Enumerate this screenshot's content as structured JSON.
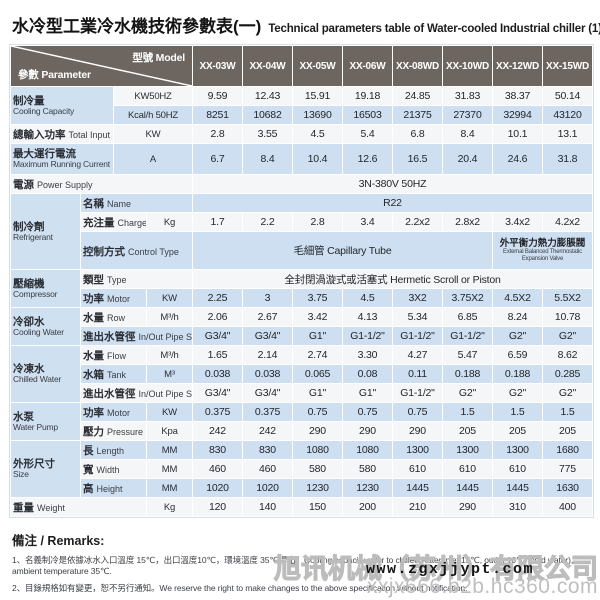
{
  "title": {
    "zh": "水冷型工業冷水機技術參數表(一)",
    "en": "Technical parameters table of Water-cooled Industrial chiller (1)"
  },
  "colors": {
    "header_bg": "#6d6660",
    "row_blue": "#cddff1",
    "row_white": "#f4f6f8",
    "grid_line": "#ffffff"
  },
  "table": {
    "corner": {
      "top": "型號 Model",
      "bottom": "參數 Parameter"
    },
    "models": [
      "XX-03W",
      "XX-04W",
      "XX-05W",
      "XX-06W",
      "XX-08WD",
      "XX-10WD",
      "XX-12WD",
      "XX-15WD"
    ],
    "rows": [
      {
        "h": 19,
        "shade": "w",
        "cells": [
          {
            "k": "label2",
            "c": 2,
            "r": 2,
            "zh": "制冷量",
            "en": "Cooling Capacity"
          },
          {
            "k": "unit",
            "c": 2,
            "t": "KW50HZ"
          },
          {
            "k": "val",
            "t": "9.59"
          },
          {
            "k": "val",
            "t": "12.43"
          },
          {
            "k": "val",
            "t": "15.91"
          },
          {
            "k": "val",
            "t": "19.18"
          },
          {
            "k": "val",
            "t": "24.85"
          },
          {
            "k": "val",
            "t": "31.83"
          },
          {
            "k": "val",
            "t": "38.37"
          },
          {
            "k": "val",
            "t": "50.14"
          }
        ]
      },
      {
        "h": 19,
        "shade": "b",
        "cells": [
          {
            "k": "unit",
            "c": 2,
            "t": "Kcal/h 50HZ"
          },
          {
            "k": "val",
            "t": "8251"
          },
          {
            "k": "val",
            "t": "10682"
          },
          {
            "k": "val",
            "t": "13690"
          },
          {
            "k": "val",
            "t": "16503"
          },
          {
            "k": "val",
            "t": "21375"
          },
          {
            "k": "val",
            "t": "27370"
          },
          {
            "k": "val",
            "t": "32994"
          },
          {
            "k": "val",
            "t": "43120"
          }
        ]
      },
      {
        "h": 19,
        "shade": "w",
        "cells": [
          {
            "k": "label1",
            "c": 2,
            "zh": "總輸入功率",
            "en": "Total Input"
          },
          {
            "k": "unit",
            "c": 2,
            "t": "KW"
          },
          {
            "k": "val",
            "t": "2.8"
          },
          {
            "k": "val",
            "t": "3.55"
          },
          {
            "k": "val",
            "t": "4.5"
          },
          {
            "k": "val",
            "t": "5.4"
          },
          {
            "k": "val",
            "t": "6.8"
          },
          {
            "k": "val",
            "t": "8.4"
          },
          {
            "k": "val",
            "t": "10.1"
          },
          {
            "k": "val",
            "t": "13.1"
          }
        ]
      },
      {
        "h": 31,
        "shade": "b",
        "cells": [
          {
            "k": "label2",
            "c": 2,
            "zh": "最大運行電流",
            "en": "Maximum Running Current"
          },
          {
            "k": "unit",
            "c": 2,
            "t": "A"
          },
          {
            "k": "val",
            "t": "6.7"
          },
          {
            "k": "val",
            "t": "8.4"
          },
          {
            "k": "val",
            "t": "10.4"
          },
          {
            "k": "val",
            "t": "12.6"
          },
          {
            "k": "val",
            "t": "16.5"
          },
          {
            "k": "val",
            "t": "20.4"
          },
          {
            "k": "val",
            "t": "24.6"
          },
          {
            "k": "val",
            "t": "31.8"
          }
        ]
      },
      {
        "h": 19,
        "shade": "w",
        "cells": [
          {
            "k": "label1",
            "c": 4,
            "zh": "電源",
            "en": "Power Supply"
          },
          {
            "k": "valspan",
            "c": 8,
            "t": "3N-380V  50HZ"
          }
        ]
      },
      {
        "h": 18,
        "shade": "b",
        "cells": [
          {
            "k": "group",
            "c": 1,
            "r": 3,
            "zh": "制冷劑",
            "en": "Refrigerant"
          },
          {
            "k": "sublabel",
            "c": 3,
            "zh": "名稱",
            "en": "Name"
          },
          {
            "k": "valspan",
            "c": 8,
            "t": "R22"
          }
        ]
      },
      {
        "h": 19,
        "shade": "w",
        "cells": [
          {
            "k": "sublabel",
            "c": 2,
            "zh": "充注量",
            "en": "Charge"
          },
          {
            "k": "unit",
            "c": 1,
            "t": "Kg"
          },
          {
            "k": "val",
            "t": "1.7"
          },
          {
            "k": "val",
            "t": "2.2"
          },
          {
            "k": "val",
            "t": "2.8"
          },
          {
            "k": "val",
            "t": "3.4"
          },
          {
            "k": "val",
            "t": "2.2x2"
          },
          {
            "k": "val",
            "t": "2.8x2"
          },
          {
            "k": "val",
            "t": "3.4x2"
          },
          {
            "k": "val",
            "t": "4.2x2"
          }
        ]
      },
      {
        "h": 38,
        "shade": "b",
        "cells": [
          {
            "k": "sublabel",
            "c": 3,
            "zh": "控制方式",
            "en": "Control Type"
          },
          {
            "k": "valspan",
            "c": 6,
            "t": "毛細管 Capillary Tube"
          },
          {
            "k": "valspan2",
            "c": 2,
            "zh": "外平衡力熱力膨脹閥",
            "en": "External Balanced Thermostatic Expansion Valve"
          }
        ]
      },
      {
        "h": 19,
        "shade": "w",
        "cells": [
          {
            "k": "group",
            "c": 1,
            "r": 2,
            "zh": "壓縮機",
            "en": "Compressor"
          },
          {
            "k": "sublabel",
            "c": 3,
            "zh": "類型",
            "en": "Type"
          },
          {
            "k": "valspan",
            "c": 8,
            "t": "全封閉渦漩式或活塞式 Hermetic Scroll or Piston"
          }
        ]
      },
      {
        "h": 19,
        "shade": "b",
        "cells": [
          {
            "k": "sublabel",
            "c": 2,
            "zh": "功率",
            "en": "Motor"
          },
          {
            "k": "unit",
            "c": 1,
            "t": "KW"
          },
          {
            "k": "val",
            "t": "2.25"
          },
          {
            "k": "val",
            "t": "3"
          },
          {
            "k": "val",
            "t": "3.75"
          },
          {
            "k": "val",
            "t": "4.5"
          },
          {
            "k": "val",
            "t": "3X2"
          },
          {
            "k": "val",
            "t": "3.75X2"
          },
          {
            "k": "val",
            "t": "4.5X2"
          },
          {
            "k": "val",
            "t": "5.5X2"
          }
        ]
      },
      {
        "h": 18,
        "shade": "w",
        "cells": [
          {
            "k": "group",
            "c": 1,
            "r": 2,
            "zh": "冷卻水",
            "en": "Cooling Water"
          },
          {
            "k": "sublabel",
            "c": 2,
            "zh": "水量",
            "en": "Row"
          },
          {
            "k": "unit",
            "c": 1,
            "t": "M³/h"
          },
          {
            "k": "val",
            "t": "2.06"
          },
          {
            "k": "val",
            "t": "2.67"
          },
          {
            "k": "val",
            "t": "3.42"
          },
          {
            "k": "val",
            "t": "4.13"
          },
          {
            "k": "val",
            "t": "5.34"
          },
          {
            "k": "val",
            "t": "6.85"
          },
          {
            "k": "val",
            "t": "8.24"
          },
          {
            "k": "val",
            "t": "10.78"
          }
        ]
      },
      {
        "h": 19,
        "shade": "b",
        "cells": [
          {
            "k": "sublabel",
            "c": 3,
            "zh": "進出水管徑",
            "en": "In/Out Pipe Size"
          },
          {
            "k": "val",
            "t": "G3/4\""
          },
          {
            "k": "val",
            "t": "G3/4\""
          },
          {
            "k": "val",
            "t": "G1\""
          },
          {
            "k": "val",
            "t": "G1-1/2\""
          },
          {
            "k": "val",
            "t": "G1-1/2\""
          },
          {
            "k": "val",
            "t": "G1-1/2\""
          },
          {
            "k": "val",
            "t": "G2\""
          },
          {
            "k": "val",
            "t": "G2\""
          }
        ]
      },
      {
        "h": 18,
        "shade": "w",
        "cells": [
          {
            "k": "group",
            "c": 1,
            "r": 3,
            "zh": "冷凍水",
            "en": "Chilled Water"
          },
          {
            "k": "sublabel",
            "c": 2,
            "zh": "水量",
            "en": "Flow"
          },
          {
            "k": "unit",
            "c": 1,
            "t": "M³/h"
          },
          {
            "k": "val",
            "t": "1.65"
          },
          {
            "k": "val",
            "t": "2.14"
          },
          {
            "k": "val",
            "t": "2.74"
          },
          {
            "k": "val",
            "t": "3.30"
          },
          {
            "k": "val",
            "t": "4.27"
          },
          {
            "k": "val",
            "t": "5.47"
          },
          {
            "k": "val",
            "t": "6.59"
          },
          {
            "k": "val",
            "t": "8.62"
          }
        ]
      },
      {
        "h": 19,
        "shade": "b",
        "cells": [
          {
            "k": "sublabel",
            "c": 2,
            "zh": "水箱",
            "en": "Tank"
          },
          {
            "k": "unit",
            "c": 1,
            "t": "M³"
          },
          {
            "k": "val",
            "t": "0.038"
          },
          {
            "k": "val",
            "t": "0.038"
          },
          {
            "k": "val",
            "t": "0.065"
          },
          {
            "k": "val",
            "t": "0.08"
          },
          {
            "k": "val",
            "t": "0.11"
          },
          {
            "k": "val",
            "t": "0.188"
          },
          {
            "k": "val",
            "t": "0.188"
          },
          {
            "k": "val",
            "t": "0.285"
          }
        ]
      },
      {
        "h": 18,
        "shade": "w",
        "cells": [
          {
            "k": "sublabel",
            "c": 3,
            "zh": "進出水管徑",
            "en": "In/Out Pipe Size"
          },
          {
            "k": "val",
            "t": "G3/4\""
          },
          {
            "k": "val",
            "t": "G3/4\""
          },
          {
            "k": "val",
            "t": "G1\""
          },
          {
            "k": "val",
            "t": "G1\""
          },
          {
            "k": "val",
            "t": "G1-1/2\""
          },
          {
            "k": "val",
            "t": "G2\""
          },
          {
            "k": "val",
            "t": "G2\""
          },
          {
            "k": "val",
            "t": "G2\""
          }
        ]
      },
      {
        "h": 19,
        "shade": "b",
        "cells": [
          {
            "k": "group",
            "c": 1,
            "r": 2,
            "zh": "水泵",
            "en": "Water Pump"
          },
          {
            "k": "sublabel",
            "c": 2,
            "zh": "功率",
            "en": "Motor"
          },
          {
            "k": "unit",
            "c": 1,
            "t": "KW"
          },
          {
            "k": "val",
            "t": "0.375"
          },
          {
            "k": "val",
            "t": "0.375"
          },
          {
            "k": "val",
            "t": "0.75"
          },
          {
            "k": "val",
            "t": "0.75"
          },
          {
            "k": "val",
            "t": "0.75"
          },
          {
            "k": "val",
            "t": "1.5"
          },
          {
            "k": "val",
            "t": "1.5"
          },
          {
            "k": "val",
            "t": "1.5"
          }
        ]
      },
      {
        "h": 19,
        "shade": "w",
        "cells": [
          {
            "k": "sublabel",
            "c": 2,
            "zh": "壓力",
            "en": "Pressure"
          },
          {
            "k": "unit",
            "c": 1,
            "t": "Kpa"
          },
          {
            "k": "val",
            "t": "242"
          },
          {
            "k": "val",
            "t": "242"
          },
          {
            "k": "val",
            "t": "290"
          },
          {
            "k": "val",
            "t": "290"
          },
          {
            "k": "val",
            "t": "290"
          },
          {
            "k": "val",
            "t": "205"
          },
          {
            "k": "val",
            "t": "205"
          },
          {
            "k": "val",
            "t": "205"
          }
        ]
      },
      {
        "h": 18,
        "shade": "b",
        "cells": [
          {
            "k": "group",
            "c": 1,
            "r": 3,
            "zh": "外形尺寸",
            "en": "Size"
          },
          {
            "k": "sublabel",
            "c": 2,
            "zh": "長",
            "en": "Length"
          },
          {
            "k": "unit",
            "c": 1,
            "t": "MM"
          },
          {
            "k": "val",
            "t": "830"
          },
          {
            "k": "val",
            "t": "830"
          },
          {
            "k": "val",
            "t": "1080"
          },
          {
            "k": "val",
            "t": "1080"
          },
          {
            "k": "val",
            "t": "1300"
          },
          {
            "k": "val",
            "t": "1300"
          },
          {
            "k": "val",
            "t": "1300"
          },
          {
            "k": "val",
            "t": "1680"
          }
        ]
      },
      {
        "h": 19,
        "shade": "w",
        "cells": [
          {
            "k": "sublabel",
            "c": 2,
            "zh": "寬",
            "en": "Width"
          },
          {
            "k": "unit",
            "c": 1,
            "t": "MM"
          },
          {
            "k": "val",
            "t": "460"
          },
          {
            "k": "val",
            "t": "460"
          },
          {
            "k": "val",
            "t": "580"
          },
          {
            "k": "val",
            "t": "580"
          },
          {
            "k": "val",
            "t": "610"
          },
          {
            "k": "val",
            "t": "610"
          },
          {
            "k": "val",
            "t": "610"
          },
          {
            "k": "val",
            "t": "775"
          }
        ]
      },
      {
        "h": 18,
        "shade": "b",
        "cells": [
          {
            "k": "sublabel",
            "c": 2,
            "zh": "高",
            "en": "Height"
          },
          {
            "k": "unit",
            "c": 1,
            "t": "MM"
          },
          {
            "k": "val",
            "t": "1020"
          },
          {
            "k": "val",
            "t": "1020"
          },
          {
            "k": "val",
            "t": "1230"
          },
          {
            "k": "val",
            "t": "1230"
          },
          {
            "k": "val",
            "t": "1445"
          },
          {
            "k": "val",
            "t": "1445"
          },
          {
            "k": "val",
            "t": "1445"
          },
          {
            "k": "val",
            "t": "1630"
          }
        ]
      },
      {
        "h": 19,
        "shade": "w",
        "cells": [
          {
            "k": "label1",
            "c": 3,
            "zh": "重量",
            "en": "Weight"
          },
          {
            "k": "unit",
            "c": 1,
            "t": "Kg"
          },
          {
            "k": "val",
            "t": "120"
          },
          {
            "k": "val",
            "t": "140"
          },
          {
            "k": "val",
            "t": "150"
          },
          {
            "k": "val",
            "t": "200"
          },
          {
            "k": "val",
            "t": "210"
          },
          {
            "k": "val",
            "t": "290"
          },
          {
            "k": "val",
            "t": "310"
          },
          {
            "k": "val",
            "t": "400"
          }
        ]
      }
    ]
  },
  "remarks": {
    "heading": "備注 / Remarks:",
    "lines": [
      "1、名義制冷是依據冰水入口溫度 15℃，出口溫度10℃，環境溫度 35℃得出。Cooling capacity refer to chilled water inlet 15℃, outlet 10℃ (cold water), ambient temperature 35℃.",
      "2、目錄規格如有變更，恕不另行通知。We reserve the right to make changes to the above specification without notification."
    ]
  },
  "watermark": {
    "company": "旭讯机械（苏州）有限公司",
    "url_bold": "www.zgxjjypt.com",
    "url_gray": "xxjx666.b2b.hc360.com"
  }
}
